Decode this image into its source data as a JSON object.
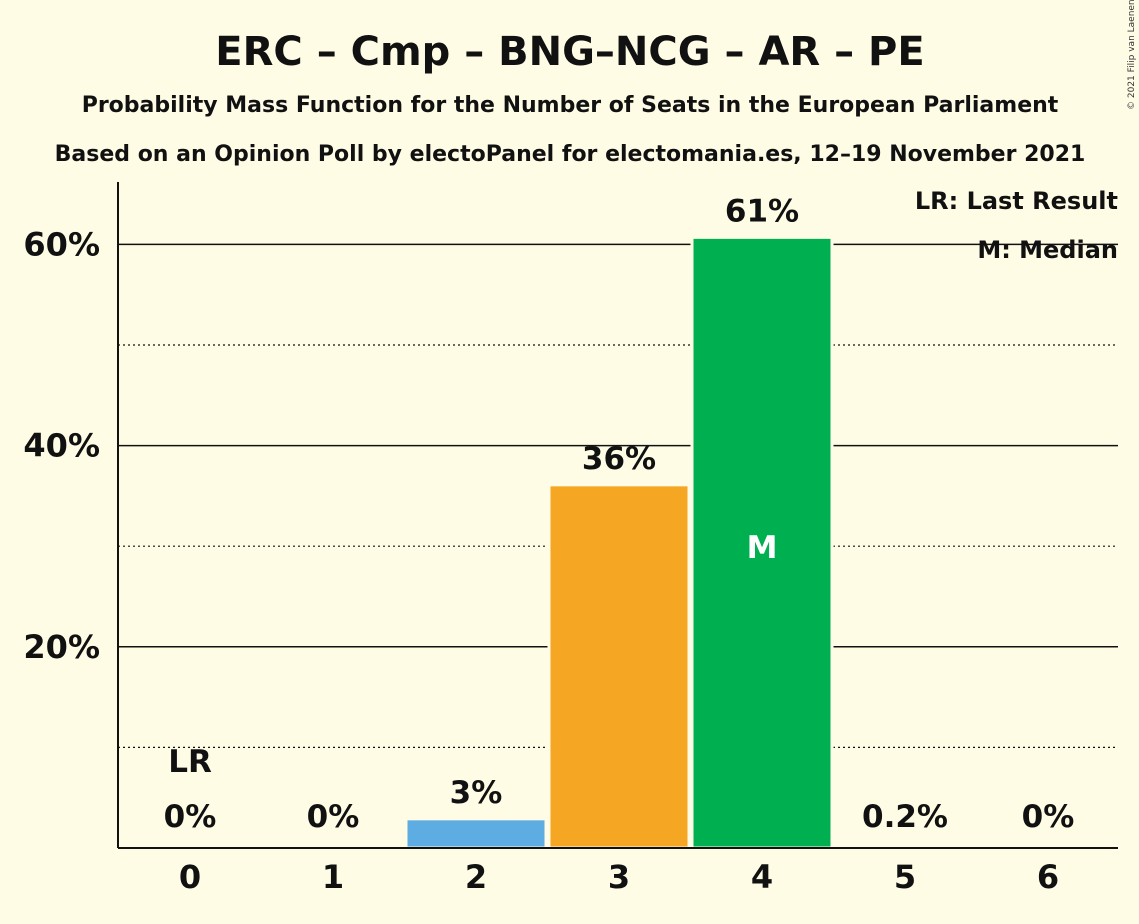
{
  "chart_data": {
    "type": "bar",
    "title": "ERC – Cmp – BNG–NCG – AR – PE",
    "subtitle": "Probability Mass Function for the Number of Seats in the European Parliament",
    "source": "Based on an Opinion Poll by electoPanel for electomania.es, 12–19 November 2021",
    "copyright": "© 2021 Filip van Laenen",
    "categories": [
      "0",
      "1",
      "2",
      "3",
      "4",
      "5",
      "6"
    ],
    "values": [
      0,
      0,
      2.9,
      36.1,
      60.7,
      0.2,
      0
    ],
    "value_labels": [
      "0%",
      "0%",
      "3%",
      "36%",
      "61%",
      "0.2%",
      "0%"
    ],
    "bar_colors": [
      "#5DADE2",
      "#5DADE2",
      "#5DADE2",
      "#F5A623",
      "#00B050",
      "#00B050",
      "#00B050"
    ],
    "yticks": [
      20,
      40,
      60
    ],
    "ytick_labels": [
      "20%",
      "40%",
      "60%"
    ],
    "ylim": [
      0,
      66
    ],
    "grid": {
      "solid": [
        20,
        40,
        60
      ],
      "dotted": [
        10,
        30,
        50
      ]
    },
    "last_result": {
      "category": "0",
      "label": "LR"
    },
    "median": {
      "category": "4",
      "label": "M"
    },
    "legend": {
      "placement": "top-right",
      "lines": [
        "LR: Last Result",
        "M: Median"
      ]
    }
  }
}
